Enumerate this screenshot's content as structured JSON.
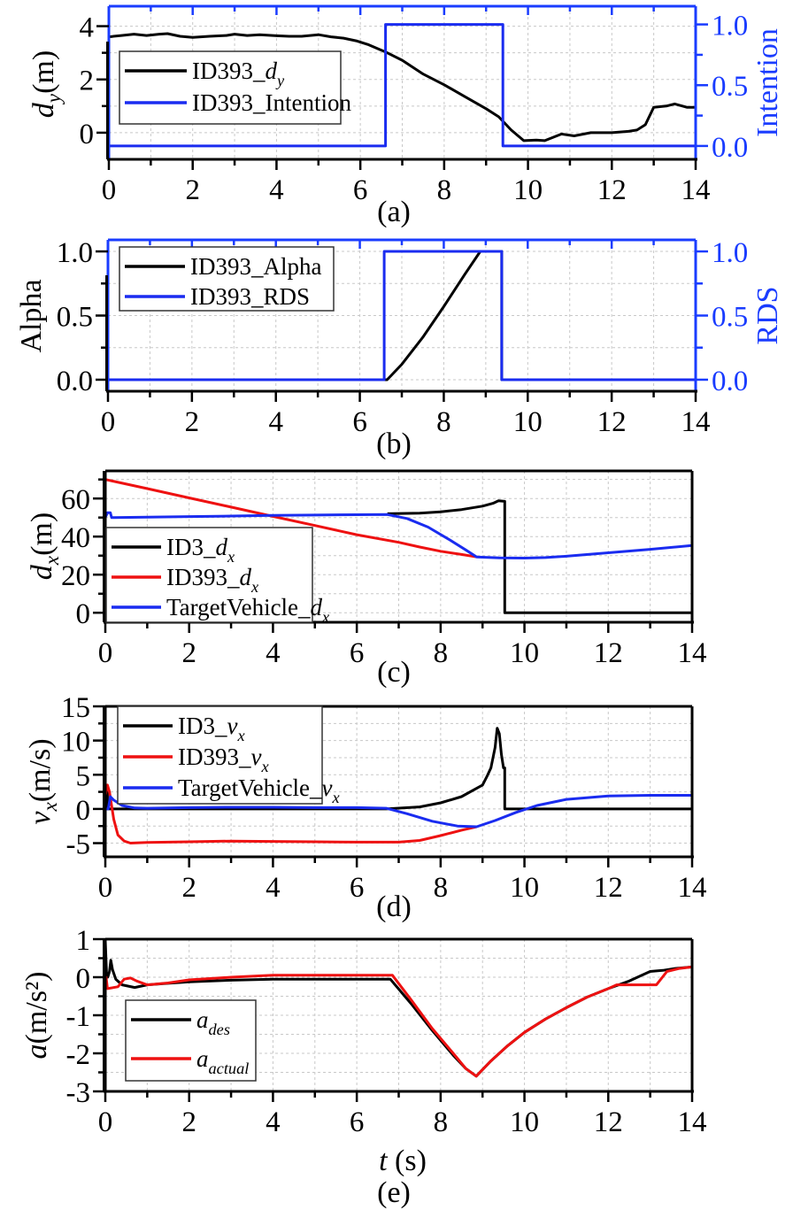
{
  "figure": {
    "x_axis_label_italic": "t",
    "x_axis_label_unit": " (s)"
  },
  "chart_data": [
    {
      "panel": "a",
      "type": "line",
      "caption": "(a)",
      "xlabel": "",
      "xlim": [
        0,
        14
      ],
      "xticks": [
        0,
        2,
        4,
        6,
        8,
        10,
        12,
        14
      ],
      "ylabel": {
        "italic": "d",
        "sub": "y",
        "rest": "(m)"
      },
      "ylim": [
        -1,
        4.75
      ],
      "yticks": [
        0,
        2,
        4
      ],
      "y2label": "Intention",
      "y2lim": [
        -0.11,
        1.15
      ],
      "y2ticks": [
        "0.0",
        "0.5",
        "1.0"
      ],
      "grid": true,
      "legend": {
        "placement": "left",
        "entries": [
          {
            "base": "ID393_",
            "italic": "d",
            "sub": "y",
            "color": "#000000"
          },
          {
            "base": "ID393_Intention",
            "italic": "",
            "sub": "",
            "color": "#1a2cf0"
          }
        ]
      },
      "series": [
        {
          "name": "ID393_d_y",
          "axis": "left",
          "color": "#000000",
          "x": [
            0,
            0.3,
            0.6,
            0.9,
            1.2,
            1.4,
            1.7,
            2.0,
            2.4,
            2.8,
            3.0,
            3.3,
            3.6,
            4.0,
            4.3,
            4.6,
            5.0,
            5.3,
            5.6,
            5.9,
            6.2,
            6.6,
            7.0,
            7.5,
            8.0,
            8.5,
            9.0,
            9.3,
            9.6,
            9.9,
            10.2,
            10.4,
            10.8,
            11.1,
            11.5,
            12.0,
            12.4,
            12.6,
            12.8,
            13.0,
            13.3,
            13.5,
            13.8,
            14.0
          ],
          "y": [
            3.6,
            3.65,
            3.7,
            3.65,
            3.7,
            3.72,
            3.62,
            3.58,
            3.62,
            3.65,
            3.7,
            3.65,
            3.68,
            3.64,
            3.62,
            3.62,
            3.68,
            3.6,
            3.55,
            3.45,
            3.3,
            3.03,
            2.72,
            2.2,
            1.8,
            1.35,
            0.9,
            0.6,
            0.1,
            -0.3,
            -0.28,
            -0.3,
            -0.05,
            -0.12,
            0.0,
            0.0,
            0.05,
            0.1,
            0.3,
            0.95,
            1.0,
            1.08,
            0.95,
            0.95
          ]
        },
        {
          "name": "ID393_Intention",
          "axis": "right",
          "color": "#1a2cf0",
          "x": [
            0,
            6.6,
            6.6,
            9.4,
            9.4,
            14
          ],
          "y": [
            0,
            0,
            1,
            1,
            0,
            0
          ]
        }
      ]
    },
    {
      "panel": "b",
      "type": "line",
      "caption": "(b)",
      "xlim": [
        0,
        14
      ],
      "xticks": [
        0,
        2,
        4,
        6,
        8,
        10,
        12,
        14
      ],
      "ylabel": {
        "italic": "",
        "sub": "",
        "rest": "Alpha"
      },
      "ylim": [
        -0.09,
        1.09
      ],
      "yticks": [
        "0.0",
        "0.5",
        "1.0"
      ],
      "y2label": "RDS",
      "y2lim": [
        -0.09,
        1.09
      ],
      "y2ticks": [
        "0.0",
        "0.5",
        "1.0"
      ],
      "grid": true,
      "legend": {
        "placement": "top-left",
        "entries": [
          {
            "base": "ID393_Alpha",
            "italic": "",
            "sub": "",
            "color": "#000000"
          },
          {
            "base": "ID393_RDS",
            "italic": "",
            "sub": "",
            "color": "#1a2cf0"
          }
        ]
      },
      "series": [
        {
          "name": "ID393_Alpha",
          "axis": "left",
          "color": "#000000",
          "x": [
            0,
            6.65,
            7.0,
            7.5,
            8.0,
            8.5,
            8.87,
            9.38,
            9.38,
            14
          ],
          "y": [
            0,
            0,
            0.12,
            0.33,
            0.57,
            0.82,
            1.0,
            1.0,
            0.0,
            0.0
          ]
        },
        {
          "name": "ID393_RDS",
          "axis": "right",
          "color": "#1a2cf0",
          "x": [
            0,
            6.58,
            6.58,
            9.38,
            9.38,
            14
          ],
          "y": [
            0,
            0,
            1,
            1,
            0,
            0
          ]
        }
      ]
    },
    {
      "panel": "c",
      "type": "line",
      "caption": "(c)",
      "xlim": [
        0,
        14
      ],
      "xticks": [
        0,
        2,
        4,
        6,
        8,
        10,
        12,
        14
      ],
      "ylabel": {
        "italic": "d",
        "sub": "x",
        "rest": "(m)"
      },
      "ylim": [
        -5,
        74.5
      ],
      "yticks": [
        0,
        20,
        40,
        60
      ],
      "grid": true,
      "legend": {
        "placement": "bottom-left",
        "entries": [
          {
            "base": "ID3_",
            "italic": "d",
            "sub": "x",
            "color": "#000000"
          },
          {
            "base": "ID393_",
            "italic": "d",
            "sub": "x",
            "color": "#ee1111"
          },
          {
            "base": "TargetVehicle_",
            "italic": "d",
            "sub": "x",
            "color": "#1a2cf0"
          }
        ]
      },
      "series": [
        {
          "name": "ID3_d_x",
          "color": "#000000",
          "x": [
            6.73,
            7.5,
            8.0,
            8.5,
            9.0,
            9.25,
            9.38,
            9.53,
            9.53,
            14
          ],
          "y": [
            52,
            52.3,
            53,
            54.2,
            56,
            57.5,
            58.8,
            58.5,
            0,
            0
          ]
        },
        {
          "name": "ID393_d_x",
          "color": "#ee1111",
          "x": [
            0,
            1,
            2,
            3,
            4,
            5,
            6,
            7,
            7.5,
            8,
            8.5,
            8.86
          ],
          "y": [
            70,
            65.2,
            60.3,
            55.5,
            50.6,
            45.8,
            41,
            37,
            34.5,
            32.3,
            30.6,
            29.3
          ]
        },
        {
          "name": "TargetVehicle_d_x",
          "color": "#1a2cf0",
          "x": [
            0,
            0.05,
            0.12,
            0.15,
            1,
            2,
            3,
            4,
            5,
            6,
            6.73,
            7.2,
            7.7,
            8.2,
            8.6,
            8.86,
            9.4,
            10,
            10.5,
            11,
            12,
            13,
            14
          ],
          "y": [
            50,
            52.5,
            52.5,
            50,
            50.2,
            50.5,
            50.8,
            51.1,
            51.3,
            51.5,
            51.6,
            49.5,
            45,
            38.5,
            33,
            29.3,
            28.8,
            28.7,
            29,
            29.7,
            31.5,
            33.3,
            35.3
          ]
        }
      ]
    },
    {
      "panel": "d",
      "type": "line",
      "caption": "(d)",
      "xlim": [
        0,
        14
      ],
      "xticks": [
        0,
        2,
        4,
        6,
        8,
        10,
        12,
        14
      ],
      "ylabel": {
        "italic": "v",
        "sub": "x",
        "rest": "(m/s)"
      },
      "ylim": [
        -7,
        15
      ],
      "yticks": [
        -5,
        0,
        5,
        10,
        15
      ],
      "grid": true,
      "legend": {
        "placement": "top-left",
        "entries": [
          {
            "base": "ID3_",
            "italic": "v",
            "sub": "x",
            "color": "#000000"
          },
          {
            "base": "ID393_",
            "italic": "v",
            "sub": "x",
            "color": "#ee1111"
          },
          {
            "base": "TargetVehicle_",
            "italic": "v",
            "sub": "x",
            "color": "#1a2cf0"
          }
        ]
      },
      "series": [
        {
          "name": "ID3_v_x",
          "color": "#000000",
          "x": [
            0,
            0.05,
            0.05,
            6.7,
            7.5,
            8.0,
            8.5,
            9.0,
            9.1,
            9.2,
            9.3,
            9.35,
            9.4,
            9.45,
            9.5,
            9.53,
            9.53,
            14
          ],
          "y": [
            2.5,
            2.5,
            0,
            0,
            0.3,
            0.9,
            1.8,
            3.5,
            4.7,
            6.0,
            9.0,
            11.8,
            11.0,
            8.0,
            6.0,
            6.0,
            0,
            0
          ]
        },
        {
          "name": "ID393_v_x",
          "color": "#ee1111",
          "x": [
            0,
            0.05,
            0.1,
            0.2,
            0.3,
            0.45,
            0.6,
            1,
            2,
            3,
            4,
            5,
            6,
            7,
            7.5,
            8,
            8.5,
            8.86
          ],
          "y": [
            2,
            3.5,
            2.5,
            -1.5,
            -3.8,
            -4.7,
            -5,
            -4.9,
            -4.8,
            -4.7,
            -4.75,
            -4.8,
            -4.85,
            -4.85,
            -4.6,
            -3.9,
            -3.1,
            -2.6
          ]
        },
        {
          "name": "TargetVehicle_v_x",
          "color": "#1a2cf0",
          "x": [
            0,
            0.07,
            0.12,
            0.2,
            0.4,
            0.7,
            1,
            2,
            3,
            4,
            5,
            6,
            6.7,
            7.2,
            7.8,
            8.4,
            8.86,
            9.3,
            9.8,
            10.3,
            11,
            12,
            13,
            14
          ],
          "y": [
            0,
            0,
            1.8,
            1.3,
            0.5,
            0.15,
            0.1,
            0.2,
            0.25,
            0.25,
            0.2,
            0.2,
            0.1,
            -0.7,
            -1.8,
            -2.5,
            -2.6,
            -1.7,
            -0.5,
            0.5,
            1.4,
            1.9,
            2.0,
            2.0
          ]
        }
      ]
    },
    {
      "panel": "e",
      "type": "line",
      "caption": "(e)",
      "xlim": [
        0,
        14
      ],
      "xticks": [
        0,
        2,
        4,
        6,
        8,
        10,
        12,
        14
      ],
      "ylabel": {
        "italic": "a",
        "sub": "",
        "rest": "(m/s²)"
      },
      "ylim": [
        -3,
        1
      ],
      "yticks": [
        -3,
        -2,
        -1,
        0,
        1
      ],
      "grid": true,
      "legend": {
        "placement": "bottom-left",
        "entries": [
          {
            "base": "",
            "italic": "a",
            "sub": "des",
            "color": "#000000"
          },
          {
            "base": "",
            "italic": "a",
            "sub": "actual",
            "color": "#ee1111"
          }
        ]
      },
      "series": [
        {
          "name": "a_des",
          "color": "#000000",
          "x": [
            0,
            0.03,
            0.06,
            0.1,
            0.13,
            0.17,
            0.25,
            0.4,
            0.7,
            1.0,
            1.5,
            2.0,
            3.0,
            4.0,
            5.0,
            6.0,
            6.8,
            7.3,
            7.8,
            8.3,
            8.6,
            8.85,
            9.2,
            9.6,
            10.0,
            10.5,
            11.0,
            11.5,
            12.0,
            12.5,
            13.0,
            13.3,
            13.6,
            14.0
          ],
          "y": [
            0.95,
            0.1,
            0.0,
            0.15,
            0.45,
            0.2,
            -0.05,
            -0.2,
            -0.27,
            -0.2,
            -0.16,
            -0.12,
            -0.08,
            -0.05,
            -0.05,
            -0.05,
            -0.05,
            -0.7,
            -1.4,
            -2.05,
            -2.4,
            -2.6,
            -2.2,
            -1.8,
            -1.45,
            -1.1,
            -0.8,
            -0.52,
            -0.3,
            -0.1,
            0.15,
            0.18,
            0.23,
            0.27
          ]
        },
        {
          "name": "a_actual",
          "color": "#ee1111",
          "x": [
            0,
            0.02,
            0.05,
            0.3,
            0.45,
            0.6,
            0.75,
            1.0,
            1.5,
            2.0,
            3.0,
            4.0,
            5.0,
            6.0,
            6.85,
            7.3,
            7.8,
            8.3,
            8.6,
            8.85,
            9.2,
            9.6,
            10.0,
            10.5,
            11.0,
            11.5,
            12.0,
            12.2,
            13.15,
            13.4,
            13.7,
            14.0
          ],
          "y": [
            0.0,
            0.0,
            -0.3,
            -0.25,
            -0.05,
            -0.02,
            -0.1,
            -0.2,
            -0.15,
            -0.07,
            0.0,
            0.05,
            0.05,
            0.05,
            0.05,
            -0.6,
            -1.35,
            -2.0,
            -2.4,
            -2.6,
            -2.2,
            -1.8,
            -1.45,
            -1.1,
            -0.8,
            -0.52,
            -0.3,
            -0.2,
            -0.2,
            0.15,
            0.23,
            0.27
          ]
        }
      ]
    }
  ]
}
